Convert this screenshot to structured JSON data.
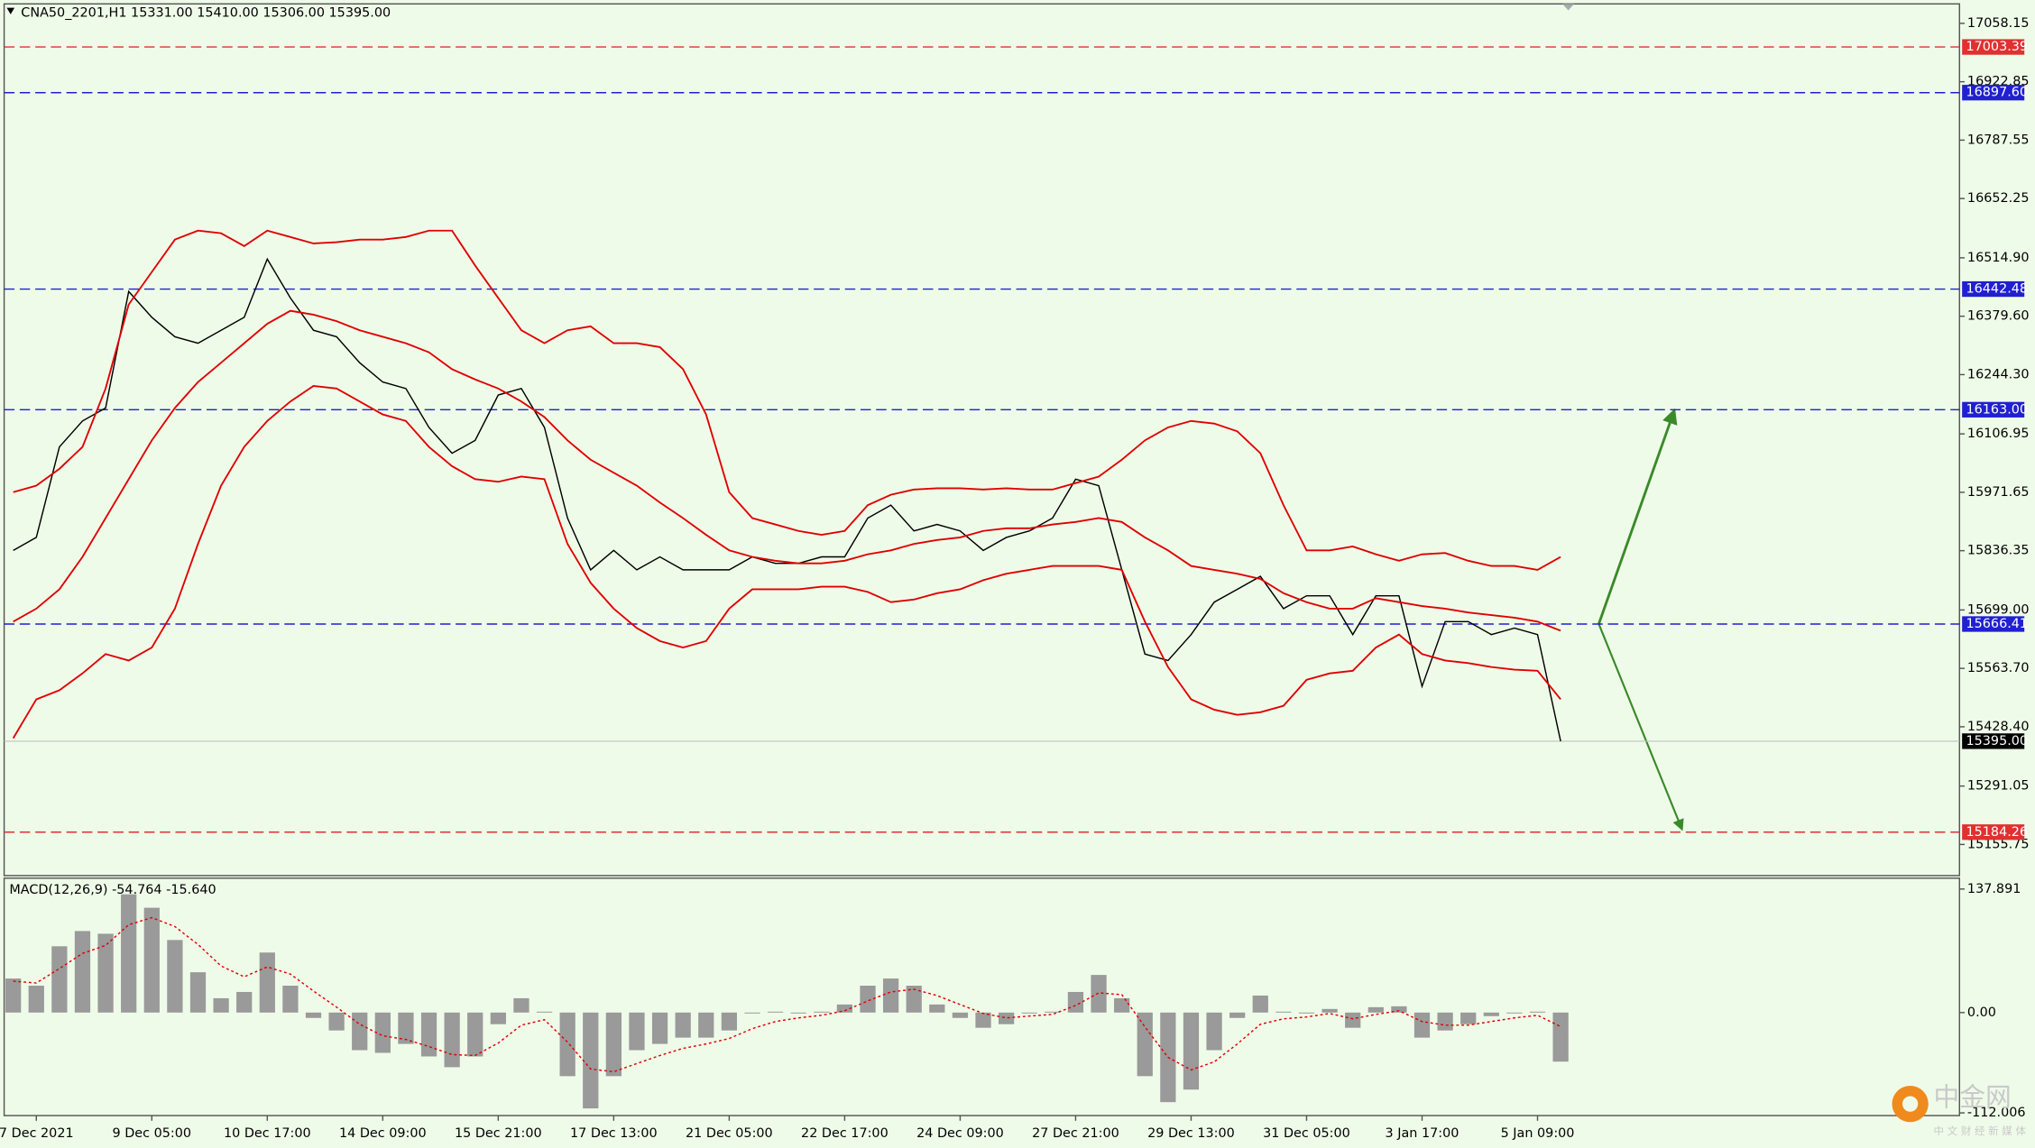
{
  "chart_data": [
    {
      "type": "line",
      "title": "CNA50_2201,H1  15331.00 15410.00 15306.00 15395.00",
      "categories": [
        null,
        "7 Dec 2021",
        null,
        null,
        null,
        null,
        "9 Dec 05:00",
        null,
        null,
        null,
        null,
        "10 Dec 17:00",
        null,
        null,
        null,
        null,
        "14 Dec 09:00",
        null,
        null,
        null,
        null,
        "15 Dec 21:00",
        null,
        null,
        null,
        null,
        "17 Dec 13:00",
        null,
        null,
        null,
        null,
        "21 Dec 05:00",
        null,
        null,
        null,
        null,
        "22 Dec 17:00",
        null,
        null,
        null,
        null,
        "24 Dec 09:00",
        null,
        null,
        null,
        null,
        "27 Dec 21:00",
        null,
        null,
        null,
        null,
        "29 Dec 13:00",
        null,
        null,
        null,
        null,
        "31 Dec 05:00",
        null,
        null,
        null,
        null,
        "3 Jan 17:00",
        null,
        null,
        null,
        null,
        "5 Jan 09:00",
        null
      ],
      "series": [
        {
          "color": "#000000",
          "values": [
            15837,
            15867,
            16077,
            16137,
            16167,
            16437,
            16377,
            16332,
            16317,
            16347,
            16377,
            16512,
            16422,
            16347,
            16332,
            16272,
            16227,
            16212,
            16122,
            16062,
            16092,
            16197,
            16212,
            16122,
            15912,
            15792,
            15837,
            15792,
            15822,
            15792,
            15792,
            15792,
            15822,
            15807,
            15807,
            15822,
            15822,
            15912,
            15942,
            15882,
            15897,
            15882,
            15837,
            15867,
            15882,
            15912,
            16002,
            15987,
            15792,
            15597,
            15582,
            15642,
            15717,
            15747,
            15777,
            15702,
            15732,
            15732,
            15642,
            15732,
            15732,
            15522,
            15672,
            15672,
            15642,
            15657,
            15642,
            15395
          ]
        },
        {
          "color": "#e00000",
          "values": [
            15972,
            15987,
            16026,
            16077,
            16212,
            16407,
            16482,
            16557,
            16578,
            16572,
            16542,
            16578,
            16563,
            16548,
            16551,
            16557,
            16557,
            16563,
            16578,
            16578,
            16497,
            16422,
            16347,
            16317,
            16347,
            16356,
            16317,
            16317,
            16308,
            16257,
            16152,
            15972,
            15912,
            15897,
            15882,
            15873,
            15882,
            15942,
            15966,
            15978,
            15981,
            15981,
            15978,
            15981,
            15978,
            15978,
            15993,
            16008,
            16047,
            16092,
            16122,
            16137,
            16131,
            16113,
            16062,
            15942,
            15837,
            15837,
            15846,
            15828,
            15813,
            15828,
            15831,
            15813,
            15801,
            15801,
            15792,
            15822
          ]
        },
        {
          "color": "#e00000",
          "values": [
            15672,
            15702,
            15747,
            15822,
            15912,
            16002,
            16092,
            16167,
            16227,
            16272,
            16317,
            16362,
            16392,
            16383,
            16368,
            16347,
            16332,
            16317,
            16296,
            16257,
            16233,
            16212,
            16182,
            16146,
            16092,
            16047,
            16017,
            15987,
            15948,
            15912,
            15873,
            15837,
            15822,
            15813,
            15807,
            15807,
            15813,
            15828,
            15837,
            15852,
            15861,
            15867,
            15882,
            15888,
            15888,
            15897,
            15903,
            15912,
            15903,
            15867,
            15837,
            15801,
            15792,
            15783,
            15771,
            15738,
            15717,
            15702,
            15702,
            15726,
            15717,
            15708,
            15702,
            15693,
            15687,
            15681,
            15672,
            15651
          ]
        },
        {
          "color": "#e00000",
          "values": [
            15402,
            15492,
            15513,
            15552,
            15597,
            15582,
            15612,
            15702,
            15852,
            15987,
            16077,
            16137,
            16182,
            16218,
            16212,
            16182,
            16152,
            16137,
            16077,
            16032,
            16002,
            15996,
            16008,
            16002,
            15852,
            15762,
            15702,
            15657,
            15627,
            15612,
            15627,
            15702,
            15747,
            15747,
            15747,
            15753,
            15753,
            15741,
            15717,
            15723,
            15738,
            15747,
            15768,
            15783,
            15792,
            15801,
            15801,
            15801,
            15792,
            15672,
            15567,
            15492,
            15468,
            15456,
            15462,
            15477,
            15537,
            15552,
            15558,
            15612,
            15642,
            15597,
            15582,
            15576,
            15567,
            15561,
            15558,
            15492
          ]
        }
      ],
      "ylim": [
        15083.6,
        17103.2
      ],
      "yticks": [
        {
          "value": 17058.15,
          "label": "17058.15"
        },
        {
          "value": 16922.85,
          "label": "16922.85"
        },
        {
          "value": 16787.55,
          "label": "16787.55"
        },
        {
          "value": 16652.25,
          "label": "16652.25"
        },
        {
          "value": 16514.9,
          "label": "16514.90"
        },
        {
          "value": 16379.6,
          "label": "16379.60"
        },
        {
          "value": 16244.3,
          "label": "16244.30"
        },
        {
          "value": 16106.95,
          "label": "16106.95"
        },
        {
          "value": 15971.65,
          "label": "15971.65"
        },
        {
          "value": 15836.35,
          "label": "15836.35"
        },
        {
          "value": 15699,
          "label": "15699.00"
        },
        {
          "value": 15563.7,
          "label": "15563.70"
        },
        {
          "value": 15428.4,
          "label": "15428.40"
        },
        {
          "value": 15291.05,
          "label": "15291.05"
        },
        {
          "value": 15155.75,
          "label": "15155.75"
        }
      ],
      "levels": [
        {
          "value": 17003.39,
          "label": "17003.39",
          "color": "#e03030"
        },
        {
          "value": 16897.6,
          "label": "16897.60",
          "color": "#2020d0"
        },
        {
          "value": 16442.48,
          "label": "16442.48",
          "color": "#2020d0"
        },
        {
          "value": 16163,
          "label": "16163.00",
          "color": "#2020d0"
        },
        {
          "value": 15666.41,
          "label": "15666.41",
          "color": "#2020d0"
        },
        {
          "value": 15184.26,
          "label": "15184.26",
          "color": "#e03030"
        }
      ],
      "price_line": {
        "value": 15395,
        "label": "15395.00"
      }
    },
    {
      "type": "bar",
      "title": "MACD(12,26,9) -54.764 -15.640",
      "color": "#9a9a9a",
      "values": [
        38,
        30,
        74,
        91,
        88,
        132,
        117,
        81,
        45,
        16,
        23,
        67,
        30,
        -6,
        -20,
        -42,
        -45,
        -35,
        -49,
        -61,
        -49,
        -13,
        16,
        1,
        -71,
        -107,
        -71,
        -42,
        -35,
        -28,
        -28,
        -20,
        -1,
        1,
        -1,
        1,
        9,
        30,
        38,
        30,
        9,
        -6,
        -17,
        -13,
        -1,
        1,
        23,
        42,
        16,
        -71,
        -100,
        -86,
        -42,
        -6,
        19,
        1,
        -1,
        4,
        -17,
        6,
        7,
        -28,
        -20,
        -13,
        -4,
        -1,
        1,
        -54.764
      ],
      "signal": {
        "color": "#e00000",
        "values": [
          35,
          33,
          49,
          66,
          75,
          98,
          106,
          96,
          76,
          52,
          40,
          51,
          43,
          24,
          6,
          -13,
          -26,
          -30,
          -38,
          -47,
          -48,
          -34,
          -14,
          -8,
          -33,
          -63,
          -66,
          -57,
          -48,
          -40,
          -35,
          -29,
          -18,
          -10,
          -6,
          -3,
          2,
          13,
          23,
          26,
          19,
          9,
          -1,
          -6,
          -4,
          -2,
          8,
          22,
          20,
          -16,
          -50,
          -64,
          -55,
          -35,
          -13,
          -7,
          -5,
          -1,
          -7,
          -2,
          2,
          -10,
          -14,
          -14,
          -10,
          -6,
          -3,
          -15.64
        ]
      },
      "ylim": [
        -115,
        150
      ],
      "yticks": [
        137.891,
        {
          "value": 0,
          "label": "0.00"
        },
        -112.006
      ]
    }
  ],
  "watermark": {
    "name": "中金网",
    "slogan": "中 文 财 经 新 媒 体"
  }
}
